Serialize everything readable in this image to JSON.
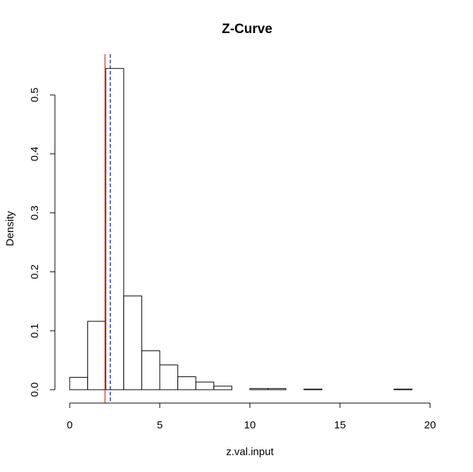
{
  "chart_data": {
    "type": "histogram",
    "title": "Z-Curve",
    "xlabel": "z.val.input",
    "ylabel": "Density",
    "xlim": [
      0,
      20
    ],
    "ylim": [
      0,
      0.55
    ],
    "x_ticks": [
      0,
      5,
      10,
      15,
      20
    ],
    "y_ticks": [
      0.0,
      0.1,
      0.2,
      0.3,
      0.4,
      0.5
    ],
    "x_tick_labels": [
      "0",
      "5",
      "10",
      "15",
      "20"
    ],
    "y_tick_labels": [
      "0.0",
      "0.1",
      "0.2",
      "0.3",
      "0.4",
      "0.5"
    ],
    "bin_width": 1,
    "bins": [
      {
        "start": 0,
        "end": 1,
        "density": 0.021
      },
      {
        "start": 1,
        "end": 2,
        "density": 0.116
      },
      {
        "start": 2,
        "end": 3,
        "density": 0.545
      },
      {
        "start": 3,
        "end": 4,
        "density": 0.159
      },
      {
        "start": 4,
        "end": 5,
        "density": 0.066
      },
      {
        "start": 5,
        "end": 6,
        "density": 0.042
      },
      {
        "start": 6,
        "end": 7,
        "density": 0.022
      },
      {
        "start": 7,
        "end": 8,
        "density": 0.013
      },
      {
        "start": 8,
        "end": 9,
        "density": 0.006
      },
      {
        "start": 9,
        "end": 10,
        "density": 0.0
      },
      {
        "start": 10,
        "end": 11,
        "density": 0.002
      },
      {
        "start": 11,
        "end": 12,
        "density": 0.002
      },
      {
        "start": 12,
        "end": 13,
        "density": 0.0
      },
      {
        "start": 13,
        "end": 14,
        "density": 0.001
      },
      {
        "start": 14,
        "end": 15,
        "density": 0.0
      },
      {
        "start": 15,
        "end": 16,
        "density": 0.0
      },
      {
        "start": 16,
        "end": 17,
        "density": 0.0
      },
      {
        "start": 17,
        "end": 18,
        "density": 0.0
      },
      {
        "start": 18,
        "end": 19,
        "density": 0.001
      },
      {
        "start": 19,
        "end": 20,
        "density": 0.0
      }
    ],
    "reference_lines": [
      {
        "x": 1.96,
        "color": "#cc3300",
        "style": "solid"
      },
      {
        "x": 2.25,
        "color": "#0000ff",
        "style": "dashed"
      }
    ],
    "grid": false,
    "colors": {
      "bar_fill": "#ffffff",
      "bar_stroke": "#000000",
      "axis": "#000000"
    }
  }
}
